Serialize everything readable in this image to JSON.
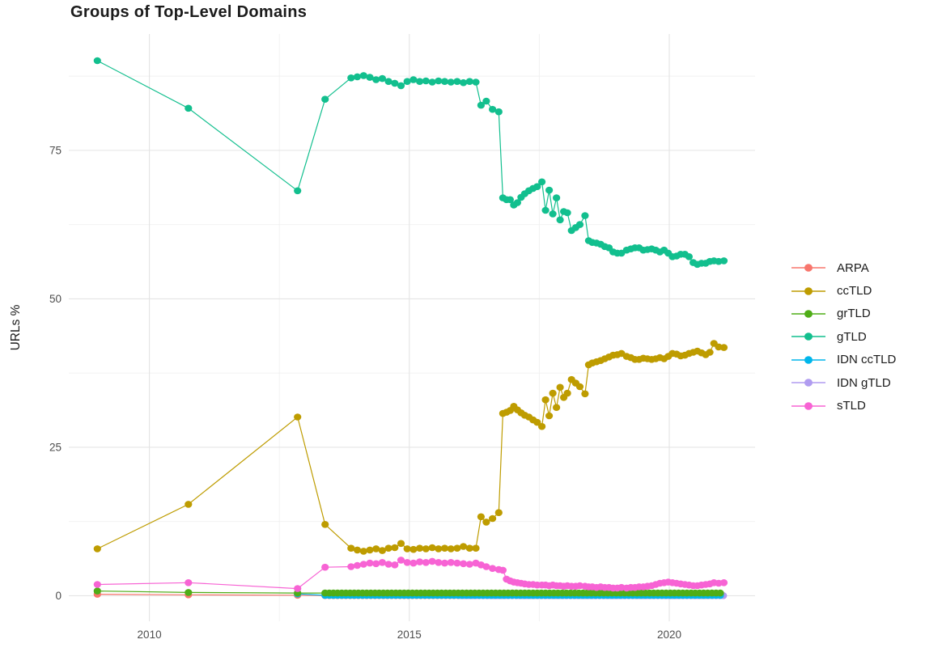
{
  "chart_data": {
    "type": "line",
    "title": "Groups of Top-Level Domains",
    "xlabel": "",
    "ylabel": "URLs %",
    "xlim": [
      2008.45,
      2021.65
    ],
    "ylim": [
      -4.3,
      94.6
    ],
    "x_ticks": [
      2010,
      2015,
      2020
    ],
    "x_minor": [
      2012.5,
      2017.5
    ],
    "y_ticks": [
      0,
      25,
      50,
      75
    ],
    "y_minor": [
      12.5,
      37.5,
      62.5,
      87.5
    ],
    "grid": "on",
    "legend_position": "right",
    "series": [
      {
        "name": "ARPA",
        "color": "#F8766D",
        "points": [
          [
            2009,
            0.25
          ],
          [
            2010.75,
            0.15
          ],
          [
            2012.85,
            0.08
          ]
        ],
        "flat": {
          "from": 2013.38,
          "to": 2021.05,
          "step": 0.08,
          "value": 0.03
        }
      },
      {
        "name": "ccTLD",
        "color": "#BE9C00",
        "points": [
          [
            2009,
            7.9
          ],
          [
            2010.75,
            15.4
          ],
          [
            2012.85,
            30.1
          ],
          [
            2013.38,
            12.0
          ],
          [
            2013.88,
            8.0
          ],
          [
            2014.0,
            7.7
          ],
          [
            2014.12,
            7.5
          ],
          [
            2014.24,
            7.7
          ],
          [
            2014.36,
            7.9
          ],
          [
            2014.48,
            7.6
          ],
          [
            2014.6,
            8.0
          ],
          [
            2014.72,
            8.1
          ],
          [
            2014.84,
            8.8
          ],
          [
            2014.96,
            7.9
          ],
          [
            2015.08,
            7.8
          ],
          [
            2015.2,
            8.0
          ],
          [
            2015.32,
            7.9
          ],
          [
            2015.44,
            8.1
          ],
          [
            2015.56,
            7.9
          ],
          [
            2015.68,
            8.0
          ],
          [
            2015.8,
            7.9
          ],
          [
            2015.92,
            8.0
          ],
          [
            2016.04,
            8.3
          ],
          [
            2016.16,
            8.0
          ],
          [
            2016.28,
            8.0
          ],
          [
            2016.38,
            13.3
          ],
          [
            2016.48,
            12.4
          ],
          [
            2016.6,
            13.0
          ],
          [
            2016.72,
            14.0
          ],
          [
            2016.8,
            30.7
          ],
          [
            2016.87,
            30.9
          ],
          [
            2016.94,
            31.2
          ],
          [
            2017.01,
            31.9
          ],
          [
            2017.08,
            31.3
          ],
          [
            2017.15,
            30.8
          ],
          [
            2017.22,
            30.4
          ],
          [
            2017.3,
            30.1
          ],
          [
            2017.38,
            29.6
          ],
          [
            2017.46,
            29.2
          ],
          [
            2017.55,
            28.5
          ],
          [
            2017.62,
            33.0
          ],
          [
            2017.69,
            30.3
          ],
          [
            2017.76,
            34.1
          ],
          [
            2017.83,
            31.7
          ],
          [
            2017.9,
            35.1
          ],
          [
            2017.97,
            33.4
          ],
          [
            2018.04,
            34.1
          ],
          [
            2018.12,
            36.4
          ],
          [
            2018.2,
            35.8
          ],
          [
            2018.28,
            35.2
          ],
          [
            2018.38,
            34.0
          ],
          [
            2018.45,
            38.9
          ],
          [
            2018.52,
            39.2
          ],
          [
            2018.6,
            39.4
          ],
          [
            2018.68,
            39.6
          ],
          [
            2018.76,
            39.9
          ],
          [
            2018.84,
            40.2
          ],
          [
            2018.92,
            40.5
          ],
          [
            2019.0,
            40.6
          ],
          [
            2019.08,
            40.8
          ],
          [
            2019.18,
            40.3
          ],
          [
            2019.26,
            40.1
          ],
          [
            2019.34,
            39.8
          ],
          [
            2019.42,
            39.8
          ],
          [
            2019.5,
            40.0
          ],
          [
            2019.58,
            39.9
          ],
          [
            2019.66,
            39.8
          ],
          [
            2019.74,
            39.9
          ],
          [
            2019.82,
            40.1
          ],
          [
            2019.9,
            39.9
          ],
          [
            2019.98,
            40.3
          ],
          [
            2020.06,
            40.8
          ],
          [
            2020.14,
            40.7
          ],
          [
            2020.22,
            40.4
          ],
          [
            2020.3,
            40.5
          ],
          [
            2020.38,
            40.8
          ],
          [
            2020.46,
            41.0
          ],
          [
            2020.54,
            41.2
          ],
          [
            2020.62,
            40.9
          ],
          [
            2020.7,
            40.6
          ],
          [
            2020.78,
            41.0
          ],
          [
            2020.86,
            42.5
          ],
          [
            2020.95,
            41.9
          ],
          [
            2021.05,
            41.8
          ]
        ]
      },
      {
        "name": "grTLD",
        "color": "#4FAD17",
        "points": [
          [
            2009,
            0.8
          ],
          [
            2010.75,
            0.55
          ],
          [
            2012.85,
            0.45
          ]
        ],
        "flat": {
          "from": 2013.38,
          "to": 2021.05,
          "step": 0.08,
          "value": 0.45
        }
      },
      {
        "name": "gTLD",
        "color": "#12BF8E",
        "points": [
          [
            2009,
            90.1
          ],
          [
            2010.75,
            82.1
          ],
          [
            2012.85,
            68.2
          ],
          [
            2013.38,
            83.6
          ],
          [
            2013.88,
            87.2
          ],
          [
            2014.0,
            87.4
          ],
          [
            2014.12,
            87.6
          ],
          [
            2014.24,
            87.3
          ],
          [
            2014.36,
            86.9
          ],
          [
            2014.48,
            87.1
          ],
          [
            2014.6,
            86.6
          ],
          [
            2014.72,
            86.3
          ],
          [
            2014.84,
            85.9
          ],
          [
            2014.96,
            86.6
          ],
          [
            2015.08,
            86.9
          ],
          [
            2015.2,
            86.6
          ],
          [
            2015.32,
            86.7
          ],
          [
            2015.44,
            86.5
          ],
          [
            2015.56,
            86.7
          ],
          [
            2015.68,
            86.6
          ],
          [
            2015.8,
            86.5
          ],
          [
            2015.92,
            86.6
          ],
          [
            2016.04,
            86.4
          ],
          [
            2016.16,
            86.6
          ],
          [
            2016.28,
            86.5
          ],
          [
            2016.38,
            82.6
          ],
          [
            2016.48,
            83.3
          ],
          [
            2016.6,
            81.9
          ],
          [
            2016.72,
            81.5
          ],
          [
            2016.8,
            67.0
          ],
          [
            2016.87,
            66.7
          ],
          [
            2016.94,
            66.7
          ],
          [
            2017.01,
            65.8
          ],
          [
            2017.08,
            66.2
          ],
          [
            2017.15,
            67.1
          ],
          [
            2017.22,
            67.7
          ],
          [
            2017.3,
            68.2
          ],
          [
            2017.38,
            68.6
          ],
          [
            2017.46,
            68.9
          ],
          [
            2017.55,
            69.7
          ],
          [
            2017.62,
            64.9
          ],
          [
            2017.69,
            68.3
          ],
          [
            2017.76,
            64.3
          ],
          [
            2017.83,
            67.0
          ],
          [
            2017.9,
            63.3
          ],
          [
            2017.97,
            64.7
          ],
          [
            2018.04,
            64.5
          ],
          [
            2018.12,
            61.5
          ],
          [
            2018.2,
            62.0
          ],
          [
            2018.28,
            62.5
          ],
          [
            2018.38,
            64.0
          ],
          [
            2018.45,
            59.8
          ],
          [
            2018.52,
            59.5
          ],
          [
            2018.6,
            59.4
          ],
          [
            2018.68,
            59.2
          ],
          [
            2018.76,
            58.8
          ],
          [
            2018.84,
            58.6
          ],
          [
            2018.92,
            57.9
          ],
          [
            2019.0,
            57.7
          ],
          [
            2019.08,
            57.7
          ],
          [
            2019.18,
            58.2
          ],
          [
            2019.26,
            58.4
          ],
          [
            2019.34,
            58.6
          ],
          [
            2019.42,
            58.6
          ],
          [
            2019.5,
            58.2
          ],
          [
            2019.58,
            58.3
          ],
          [
            2019.66,
            58.4
          ],
          [
            2019.74,
            58.2
          ],
          [
            2019.82,
            57.9
          ],
          [
            2019.9,
            58.2
          ],
          [
            2019.98,
            57.7
          ],
          [
            2020.06,
            57.1
          ],
          [
            2020.14,
            57.2
          ],
          [
            2020.22,
            57.5
          ],
          [
            2020.3,
            57.5
          ],
          [
            2020.38,
            57.1
          ],
          [
            2020.46,
            56.1
          ],
          [
            2020.54,
            55.8
          ],
          [
            2020.62,
            56.0
          ],
          [
            2020.7,
            56.0
          ],
          [
            2020.78,
            56.3
          ],
          [
            2020.86,
            56.4
          ],
          [
            2020.95,
            56.3
          ],
          [
            2021.05,
            56.4
          ]
        ]
      },
      {
        "name": "IDN ccTLD",
        "color": "#00B6EB",
        "points": [
          [
            2012.85,
            0.3
          ]
        ],
        "flat": {
          "from": 2013.38,
          "to": 2021.05,
          "step": 0.08,
          "value": 0.07
        }
      },
      {
        "name": "IDN gTLD",
        "color": "#B09CF0",
        "points": [],
        "flat": {
          "from": 2016.0,
          "to": 2021.05,
          "step": 0.07,
          "value": 0.02
        }
      },
      {
        "name": "sTLD",
        "color": "#F763D4",
        "points": [
          [
            2009,
            1.9
          ],
          [
            2010.75,
            2.2
          ],
          [
            2012.85,
            1.2
          ],
          [
            2013.38,
            4.8
          ],
          [
            2013.88,
            4.9
          ],
          [
            2014.0,
            5.1
          ],
          [
            2014.12,
            5.3
          ],
          [
            2014.24,
            5.5
          ],
          [
            2014.36,
            5.4
          ],
          [
            2014.48,
            5.6
          ],
          [
            2014.6,
            5.3
          ],
          [
            2014.72,
            5.2
          ],
          [
            2014.84,
            6.0
          ],
          [
            2014.96,
            5.6
          ],
          [
            2015.08,
            5.5
          ],
          [
            2015.2,
            5.7
          ],
          [
            2015.32,
            5.6
          ],
          [
            2015.44,
            5.8
          ],
          [
            2015.56,
            5.6
          ],
          [
            2015.68,
            5.5
          ],
          [
            2015.8,
            5.6
          ],
          [
            2015.92,
            5.5
          ],
          [
            2016.04,
            5.4
          ],
          [
            2016.16,
            5.3
          ],
          [
            2016.28,
            5.5
          ],
          [
            2016.38,
            5.2
          ],
          [
            2016.48,
            4.9
          ],
          [
            2016.6,
            4.6
          ],
          [
            2016.72,
            4.4
          ],
          [
            2016.8,
            4.3
          ],
          [
            2016.87,
            2.8
          ],
          [
            2016.94,
            2.5
          ],
          [
            2017.01,
            2.3
          ],
          [
            2017.08,
            2.2
          ],
          [
            2017.15,
            2.1
          ],
          [
            2017.22,
            2.0
          ],
          [
            2017.3,
            1.9
          ],
          [
            2017.38,
            1.9
          ],
          [
            2017.46,
            1.8
          ],
          [
            2017.55,
            1.8
          ],
          [
            2017.62,
            1.8
          ],
          [
            2017.69,
            1.7
          ],
          [
            2017.76,
            1.8
          ],
          [
            2017.83,
            1.7
          ],
          [
            2017.9,
            1.7
          ],
          [
            2017.97,
            1.6
          ],
          [
            2018.04,
            1.7
          ],
          [
            2018.12,
            1.6
          ],
          [
            2018.2,
            1.6
          ],
          [
            2018.28,
            1.7
          ],
          [
            2018.38,
            1.6
          ],
          [
            2018.45,
            1.5
          ],
          [
            2018.52,
            1.5
          ],
          [
            2018.6,
            1.4
          ],
          [
            2018.68,
            1.5
          ],
          [
            2018.76,
            1.4
          ],
          [
            2018.84,
            1.4
          ],
          [
            2018.92,
            1.3
          ],
          [
            2019.0,
            1.3
          ],
          [
            2019.08,
            1.4
          ],
          [
            2019.18,
            1.3
          ],
          [
            2019.26,
            1.4
          ],
          [
            2019.34,
            1.4
          ],
          [
            2019.42,
            1.5
          ],
          [
            2019.5,
            1.5
          ],
          [
            2019.58,
            1.6
          ],
          [
            2019.66,
            1.7
          ],
          [
            2019.74,
            1.9
          ],
          [
            2019.82,
            2.1
          ],
          [
            2019.9,
            2.2
          ],
          [
            2019.98,
            2.3
          ],
          [
            2020.06,
            2.2
          ],
          [
            2020.14,
            2.1
          ],
          [
            2020.22,
            2.0
          ],
          [
            2020.3,
            1.9
          ],
          [
            2020.38,
            1.8
          ],
          [
            2020.46,
            1.7
          ],
          [
            2020.54,
            1.7
          ],
          [
            2020.62,
            1.8
          ],
          [
            2020.7,
            1.9
          ],
          [
            2020.78,
            2.0
          ],
          [
            2020.86,
            2.2
          ],
          [
            2020.95,
            2.1
          ],
          [
            2021.05,
            2.2
          ]
        ]
      }
    ]
  }
}
